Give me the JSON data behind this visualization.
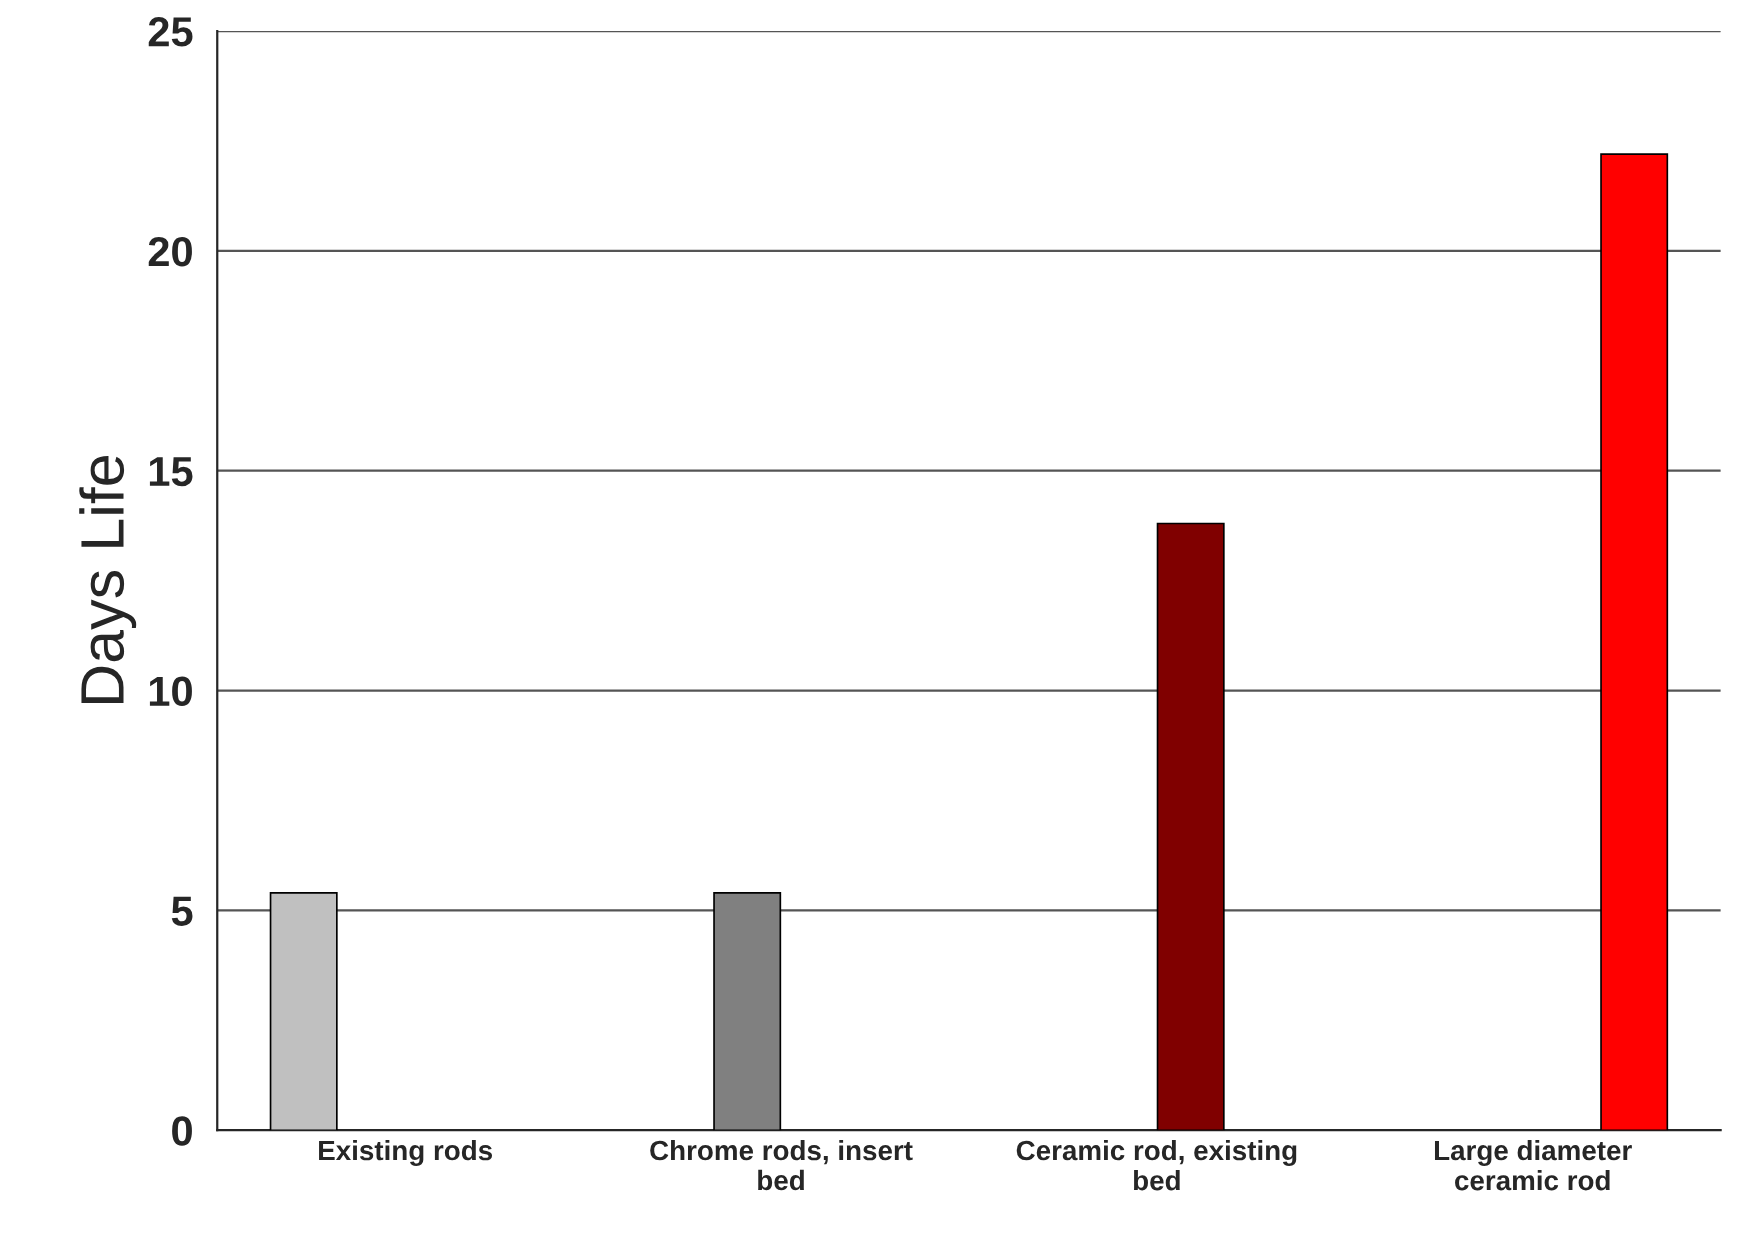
{
  "chart_data": {
    "type": "bar",
    "ylabel": "Days Life",
    "categories": [
      "Existing rods",
      "Chrome rods, insert\nbed",
      "Ceramic rod, existing\nbed",
      "Large diameter\nceramic rod"
    ],
    "series": [
      {
        "color": "#c0c0c0",
        "values": [
          5.4,
          null,
          null,
          null
        ]
      },
      {
        "color": "#808080",
        "values": [
          null,
          5.4,
          null,
          null
        ]
      },
      {
        "color": "#800000",
        "values": [
          null,
          null,
          13.8,
          null
        ]
      },
      {
        "color": "#ff0000",
        "values": [
          null,
          null,
          null,
          22.2
        ]
      }
    ],
    "ylim": [
      0,
      25
    ],
    "yticks": [
      0,
      5,
      10,
      15,
      20,
      25
    ],
    "grid": "y",
    "legend": false
  }
}
